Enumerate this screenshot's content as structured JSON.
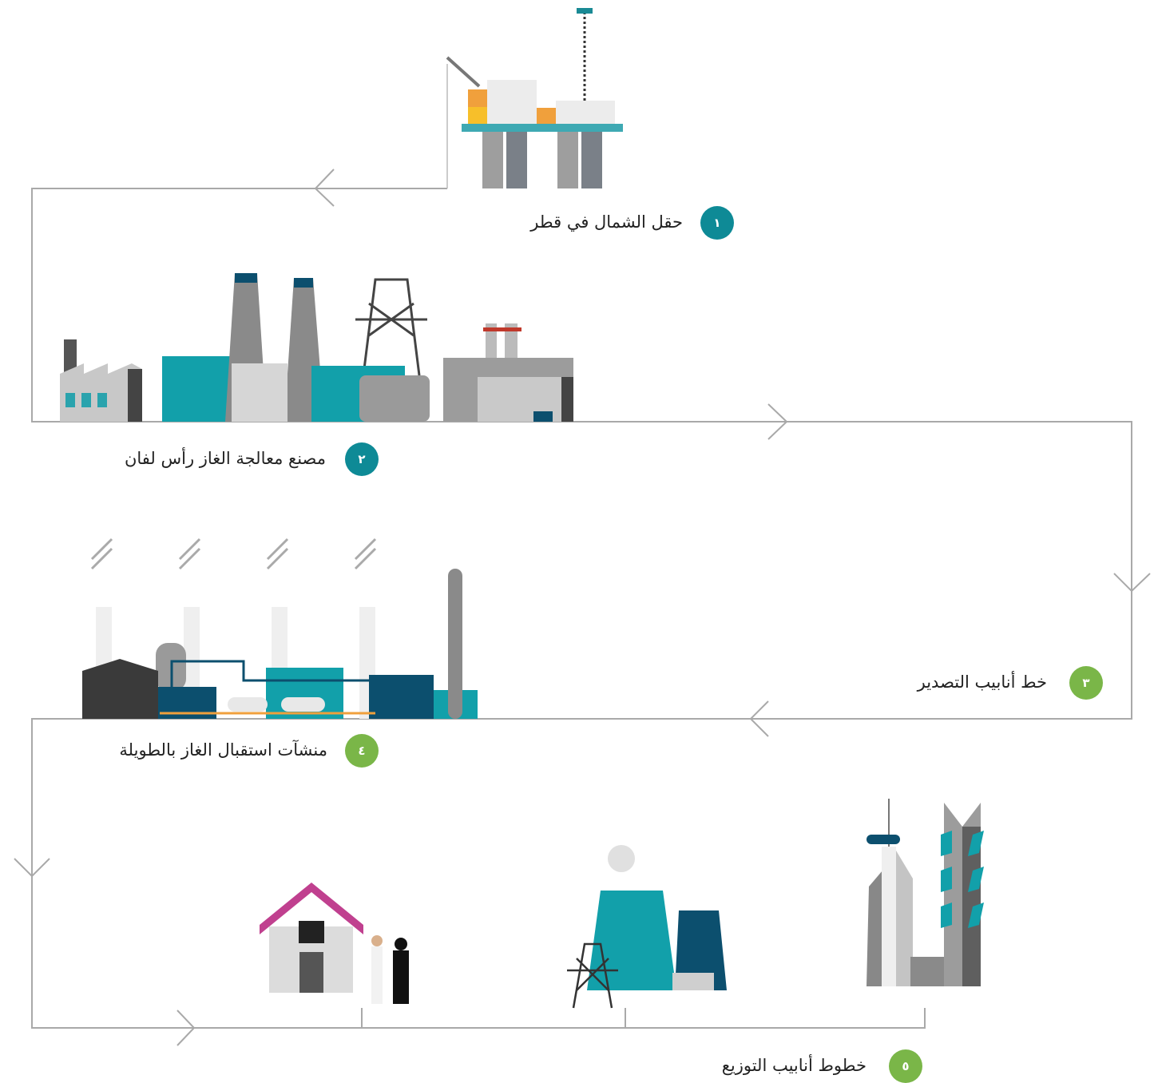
{
  "steps": [
    {
      "number": "١",
      "label": "حقل الشمال في قطر"
    },
    {
      "number": "٢",
      "label": "مصنع معالجة الغاز رأس لفان"
    },
    {
      "number": "٣",
      "label": "خط أنابيب التصدير"
    },
    {
      "number": "٤",
      "label": "منشآت استقبال الغاز بالطويلة"
    },
    {
      "number": "٥",
      "label": "خطوط أنابيب التوزيع"
    }
  ]
}
